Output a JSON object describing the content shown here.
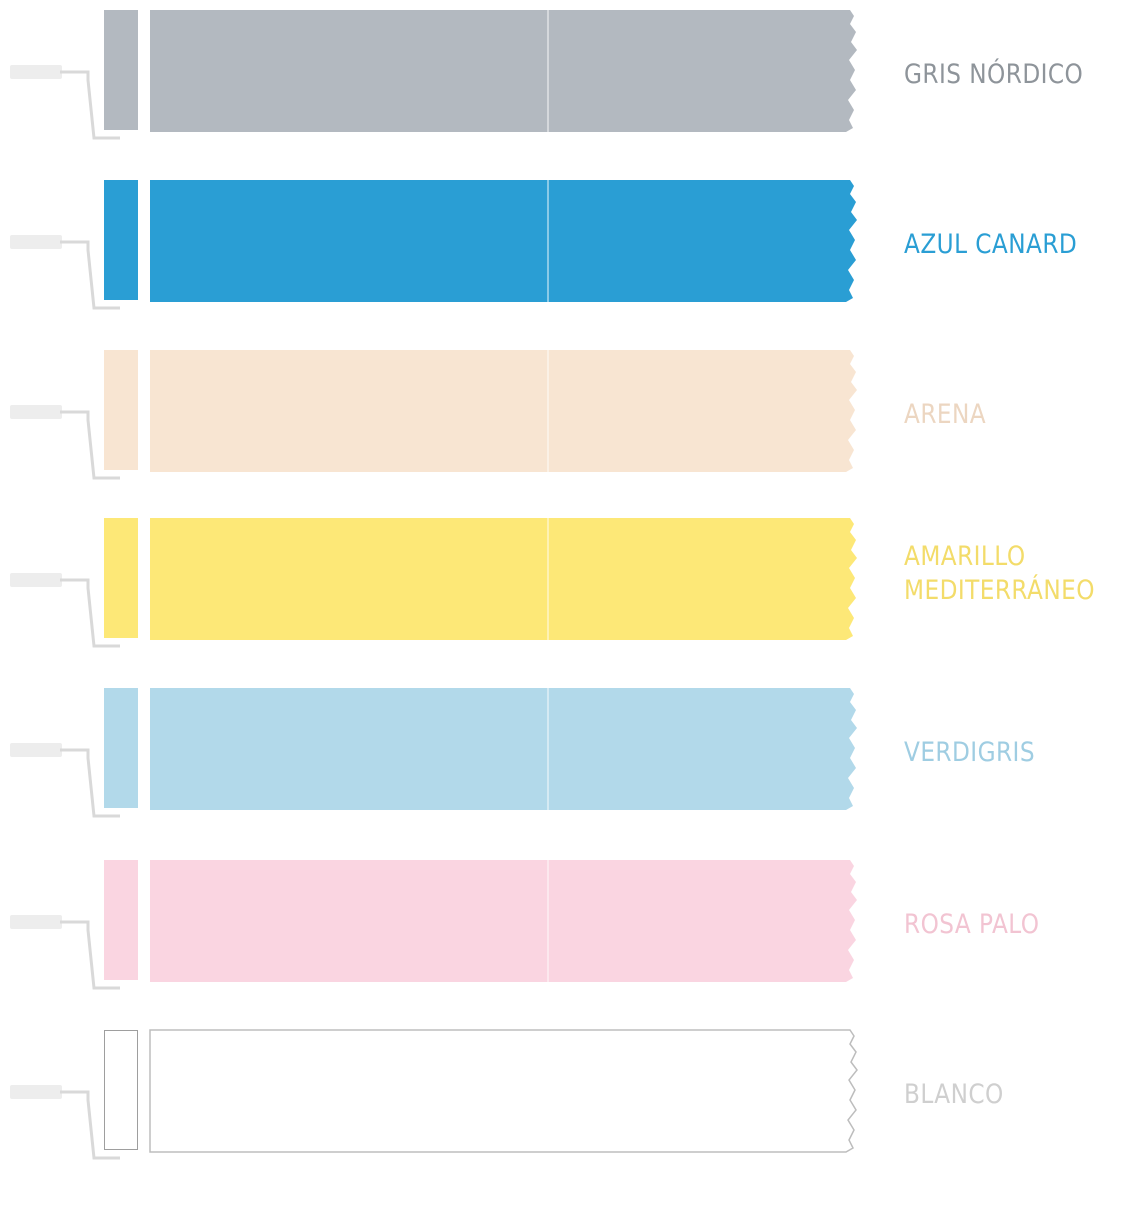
{
  "swatches": [
    {
      "name": "GRIS NÓRDICO",
      "color": "#b3b9c0",
      "text_color": "#8e949a"
    },
    {
      "name": "AZUL CANARD",
      "color": "#2a9ed4",
      "text_color": "#2a9ed4"
    },
    {
      "name": "ARENA",
      "color": "#f8e5d2",
      "text_color": "#ecd6c1"
    },
    {
      "name": "AMARILLO\nMEDITERRÁNEO",
      "color": "#fde877",
      "text_color": "#f3dc6a"
    },
    {
      "name": "VERDIGRIS",
      "color": "#b2d9ea",
      "text_color": "#9fcde2"
    },
    {
      "name": "ROSA PALO",
      "color": "#fad5e1",
      "text_color": "#f2c4d2"
    },
    {
      "name": "BLANCO",
      "color": "#ffffff",
      "text_color": "#cfcfcf"
    }
  ],
  "icons": {
    "roller": "paint-roller-icon"
  }
}
